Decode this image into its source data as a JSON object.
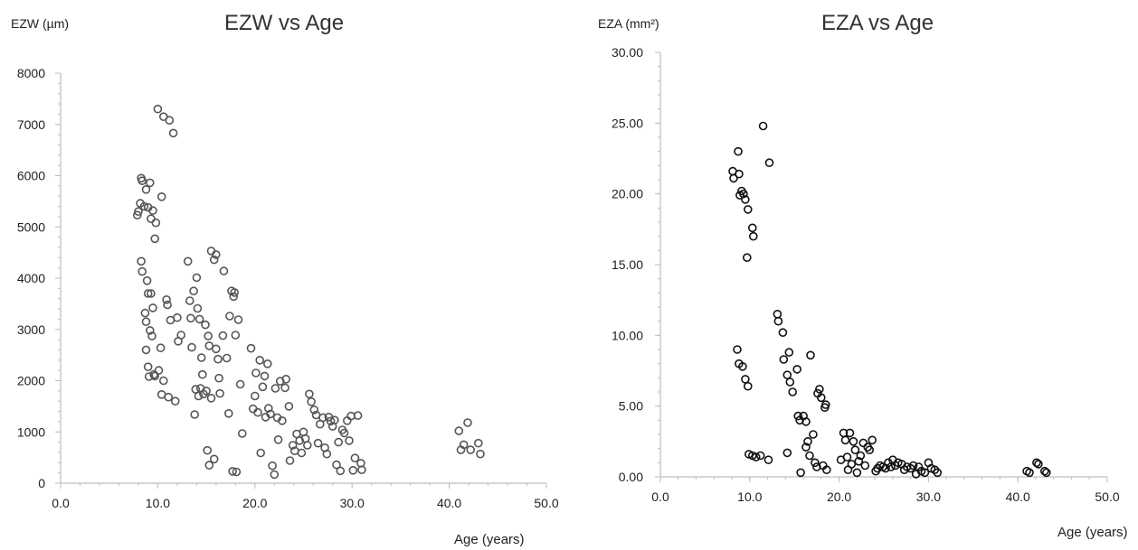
{
  "colors": {
    "axis": "#bdbdbd",
    "marker_left": "#555555",
    "marker_right": "#111111"
  },
  "chart_data": [
    {
      "type": "scatter",
      "title": "EZW vs Age",
      "ylabel": "EZW (µm)",
      "xlabel": "Age (years)",
      "xlim": [
        0,
        50
      ],
      "ylim": [
        0,
        8000
      ],
      "x_ticks": [
        "0.0",
        "10.0",
        "20.0",
        "30.0",
        "40.0",
        "50.0"
      ],
      "y_ticks": [
        "0",
        "1000",
        "2000",
        "3000",
        "4000",
        "5000",
        "6000",
        "7000",
        "8000"
      ],
      "grid": false,
      "legend": "none",
      "points": [
        [
          7.9,
          5230
        ],
        [
          8.0,
          5300
        ],
        [
          8.2,
          5460
        ],
        [
          8.3,
          5950
        ],
        [
          8.4,
          5900
        ],
        [
          8.6,
          5400
        ],
        [
          8.8,
          5730
        ],
        [
          9.0,
          5380
        ],
        [
          9.2,
          5860
        ],
        [
          9.3,
          5160
        ],
        [
          9.5,
          5320
        ],
        [
          9.8,
          5080
        ],
        [
          10.0,
          7300
        ],
        [
          10.4,
          5590
        ],
        [
          10.6,
          7150
        ],
        [
          11.2,
          7080
        ],
        [
          11.6,
          6830
        ],
        [
          9.7,
          4770
        ],
        [
          8.3,
          4330
        ],
        [
          8.4,
          4130
        ],
        [
          8.7,
          3320
        ],
        [
          8.8,
          3150
        ],
        [
          8.9,
          3950
        ],
        [
          9.0,
          3700
        ],
        [
          9.2,
          2980
        ],
        [
          9.4,
          2870
        ],
        [
          9.3,
          3700
        ],
        [
          9.5,
          3420
        ],
        [
          8.8,
          2600
        ],
        [
          9.0,
          2270
        ],
        [
          9.1,
          2080
        ],
        [
          9.6,
          2120
        ],
        [
          9.7,
          2090
        ],
        [
          10.1,
          2200
        ],
        [
          10.3,
          2640
        ],
        [
          10.4,
          1730
        ],
        [
          10.6,
          2000
        ],
        [
          10.9,
          3580
        ],
        [
          11.0,
          3480
        ],
        [
          11.1,
          1680
        ],
        [
          11.3,
          3180
        ],
        [
          11.8,
          1600
        ],
        [
          12.0,
          3230
        ],
        [
          12.1,
          2770
        ],
        [
          12.4,
          2890
        ],
        [
          13.1,
          4330
        ],
        [
          13.3,
          3560
        ],
        [
          13.4,
          3220
        ],
        [
          13.7,
          3750
        ],
        [
          13.8,
          1340
        ],
        [
          14.0,
          4010
        ],
        [
          14.1,
          3410
        ],
        [
          14.3,
          3200
        ],
        [
          14.5,
          2450
        ],
        [
          14.6,
          2120
        ],
        [
          14.9,
          3090
        ],
        [
          15.0,
          1800
        ],
        [
          15.2,
          2870
        ],
        [
          15.3,
          2680
        ],
        [
          15.5,
          1660
        ],
        [
          15.5,
          4530
        ],
        [
          15.8,
          4360
        ],
        [
          16.0,
          4460
        ],
        [
          16.2,
          2420
        ],
        [
          16.4,
          1750
        ],
        [
          16.7,
          2880
        ],
        [
          16.8,
          4140
        ],
        [
          17.1,
          2440
        ],
        [
          17.4,
          3260
        ],
        [
          17.6,
          3750
        ],
        [
          17.8,
          3640
        ],
        [
          17.9,
          3720
        ],
        [
          18.0,
          2890
        ],
        [
          18.3,
          3190
        ],
        [
          18.5,
          1930
        ],
        [
          18.7,
          970
        ],
        [
          15.1,
          640
        ],
        [
          15.3,
          350
        ],
        [
          15.8,
          470
        ],
        [
          17.3,
          1360
        ],
        [
          17.7,
          230
        ],
        [
          18.1,
          220
        ],
        [
          13.5,
          2650
        ],
        [
          13.9,
          1830
        ],
        [
          14.2,
          1700
        ],
        [
          14.4,
          1850
        ],
        [
          14.7,
          1740
        ],
        [
          16.0,
          2620
        ],
        [
          16.3,
          2050
        ],
        [
          19.6,
          2630
        ],
        [
          19.8,
          1450
        ],
        [
          20.0,
          1700
        ],
        [
          20.1,
          2150
        ],
        [
          20.3,
          1380
        ],
        [
          20.5,
          2400
        ],
        [
          20.6,
          590
        ],
        [
          20.8,
          1880
        ],
        [
          21.0,
          2090
        ],
        [
          21.1,
          1290
        ],
        [
          21.3,
          2330
        ],
        [
          21.4,
          1460
        ],
        [
          21.6,
          1350
        ],
        [
          21.8,
          340
        ],
        [
          22.0,
          170
        ],
        [
          22.1,
          1850
        ],
        [
          22.3,
          1280
        ],
        [
          22.4,
          850
        ],
        [
          22.6,
          1990
        ],
        [
          22.8,
          1220
        ],
        [
          23.1,
          1860
        ],
        [
          23.2,
          2030
        ],
        [
          23.5,
          1500
        ],
        [
          23.6,
          440
        ],
        [
          23.9,
          740
        ],
        [
          24.1,
          630
        ],
        [
          24.3,
          960
        ],
        [
          24.6,
          830
        ],
        [
          24.8,
          590
        ],
        [
          25.0,
          1000
        ],
        [
          25.2,
          870
        ],
        [
          25.4,
          740
        ],
        [
          25.6,
          1740
        ],
        [
          25.8,
          1590
        ],
        [
          26.1,
          1430
        ],
        [
          26.3,
          1330
        ],
        [
          26.5,
          780
        ],
        [
          26.7,
          1150
        ],
        [
          27.0,
          1280
        ],
        [
          27.2,
          690
        ],
        [
          27.4,
          570
        ],
        [
          27.6,
          1290
        ],
        [
          27.8,
          1210
        ],
        [
          28.0,
          1110
        ],
        [
          28.2,
          1230
        ],
        [
          28.4,
          360
        ],
        [
          28.6,
          800
        ],
        [
          28.8,
          240
        ],
        [
          29.0,
          1040
        ],
        [
          29.2,
          980
        ],
        [
          29.5,
          1220
        ],
        [
          29.7,
          830
        ],
        [
          29.9,
          1310
        ],
        [
          30.1,
          250
        ],
        [
          30.3,
          490
        ],
        [
          30.6,
          1320
        ],
        [
          30.9,
          390
        ],
        [
          31.0,
          260
        ],
        [
          41.0,
          1020
        ],
        [
          41.2,
          650
        ],
        [
          41.5,
          750
        ],
        [
          41.9,
          1180
        ],
        [
          42.2,
          650
        ],
        [
          43.0,
          780
        ],
        [
          43.2,
          570
        ]
      ]
    },
    {
      "type": "scatter",
      "title": "EZA vs Age",
      "ylabel": "EZA (mm²)",
      "xlabel": "Age (years)",
      "xlim": [
        0,
        50
      ],
      "ylim": [
        0,
        30
      ],
      "x_ticks": [
        "0.0",
        "10.0",
        "20.0",
        "30.0",
        "40.0",
        "50.0"
      ],
      "y_ticks": [
        "0.00",
        "5.00",
        "10.00",
        "15.00",
        "20.00",
        "25.00",
        "30.00"
      ],
      "grid": false,
      "legend": "none",
      "points": [
        [
          8.1,
          21.6
        ],
        [
          8.2,
          21.1
        ],
        [
          8.7,
          23.0
        ],
        [
          8.8,
          21.4
        ],
        [
          8.9,
          19.9
        ],
        [
          9.1,
          20.2
        ],
        [
          9.3,
          20.0
        ],
        [
          9.5,
          19.6
        ],
        [
          9.8,
          18.9
        ],
        [
          9.7,
          15.5
        ],
        [
          10.3,
          17.6
        ],
        [
          10.4,
          17.0
        ],
        [
          11.5,
          24.8
        ],
        [
          12.2,
          22.2
        ],
        [
          8.6,
          9.0
        ],
        [
          8.8,
          8.0
        ],
        [
          9.2,
          7.8
        ],
        [
          9.5,
          6.9
        ],
        [
          9.8,
          6.4
        ],
        [
          9.9,
          1.6
        ],
        [
          10.3,
          1.5
        ],
        [
          10.7,
          1.4
        ],
        [
          11.2,
          1.5
        ],
        [
          12.1,
          1.2
        ],
        [
          13.1,
          11.5
        ],
        [
          13.2,
          11.0
        ],
        [
          13.7,
          10.2
        ],
        [
          13.8,
          8.3
        ],
        [
          14.2,
          7.2
        ],
        [
          14.4,
          8.8
        ],
        [
          14.5,
          6.7
        ],
        [
          14.8,
          6.0
        ],
        [
          15.3,
          7.6
        ],
        [
          15.4,
          4.3
        ],
        [
          15.6,
          4.0
        ],
        [
          16.0,
          4.3
        ],
        [
          16.3,
          3.9
        ],
        [
          16.5,
          2.5
        ],
        [
          16.8,
          8.6
        ],
        [
          17.1,
          3.0
        ],
        [
          17.3,
          1.0
        ],
        [
          17.6,
          5.9
        ],
        [
          17.8,
          6.2
        ],
        [
          18.0,
          5.6
        ],
        [
          18.4,
          4.9
        ],
        [
          18.5,
          5.1
        ],
        [
          14.2,
          1.7
        ],
        [
          15.7,
          0.3
        ],
        [
          16.3,
          2.1
        ],
        [
          16.7,
          1.5
        ],
        [
          17.5,
          0.7
        ],
        [
          18.2,
          0.8
        ],
        [
          18.6,
          0.5
        ],
        [
          20.2,
          1.2
        ],
        [
          20.5,
          3.1
        ],
        [
          20.7,
          2.6
        ],
        [
          20.9,
          1.4
        ],
        [
          21.0,
          0.5
        ],
        [
          21.2,
          3.1
        ],
        [
          21.4,
          0.9
        ],
        [
          21.6,
          2.5
        ],
        [
          21.8,
          1.9
        ],
        [
          22.0,
          0.3
        ],
        [
          22.2,
          1.1
        ],
        [
          22.4,
          1.5
        ],
        [
          22.7,
          2.4
        ],
        [
          22.9,
          0.8
        ],
        [
          23.2,
          2.1
        ],
        [
          23.4,
          1.9
        ],
        [
          23.7,
          2.6
        ],
        [
          24.1,
          0.4
        ],
        [
          24.3,
          0.6
        ],
        [
          24.6,
          0.8
        ],
        [
          24.9,
          0.7
        ],
        [
          25.2,
          0.6
        ],
        [
          25.5,
          1.0
        ],
        [
          25.8,
          0.7
        ],
        [
          26.0,
          1.2
        ],
        [
          26.3,
          0.8
        ],
        [
          26.6,
          1.0
        ],
        [
          27.0,
          0.9
        ],
        [
          27.3,
          0.5
        ],
        [
          27.6,
          0.7
        ],
        [
          28.0,
          0.6
        ],
        [
          28.3,
          0.8
        ],
        [
          28.6,
          0.2
        ],
        [
          28.9,
          0.7
        ],
        [
          29.2,
          0.4
        ],
        [
          29.6,
          0.3
        ],
        [
          30.0,
          1.0
        ],
        [
          30.3,
          0.6
        ],
        [
          30.7,
          0.5
        ],
        [
          31.0,
          0.3
        ],
        [
          41.0,
          0.4
        ],
        [
          41.3,
          0.3
        ],
        [
          42.1,
          1.0
        ],
        [
          42.3,
          0.9
        ],
        [
          43.0,
          0.4
        ],
        [
          43.2,
          0.3
        ]
      ]
    }
  ]
}
